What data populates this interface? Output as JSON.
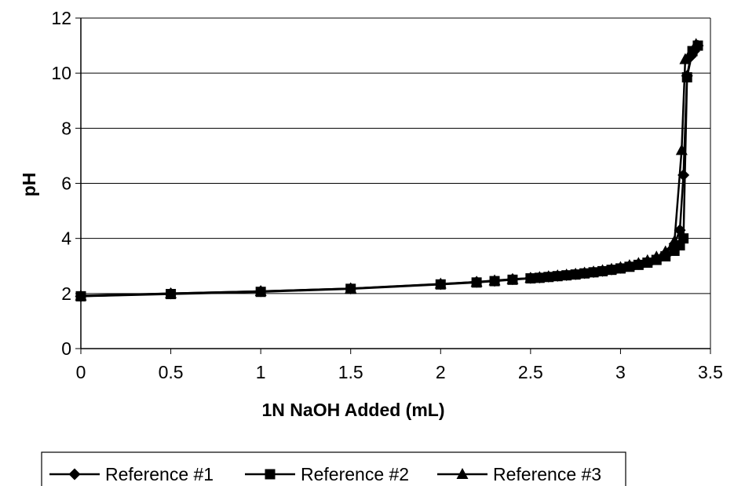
{
  "chart_data": {
    "type": "line",
    "title": "",
    "xlabel": "1N NaOH Added (mL)",
    "ylabel": "pH",
    "xlim": [
      0,
      3.5
    ],
    "ylim": [
      0,
      12
    ],
    "x_ticks": [
      "0",
      "0.5",
      "1",
      "1.5",
      "2",
      "2.5",
      "3",
      "3.5"
    ],
    "y_ticks": [
      "0",
      "2",
      "4",
      "6",
      "8",
      "10",
      "12"
    ],
    "grid": "horizontal",
    "legend_position": "bottom",
    "series": [
      {
        "name": "Reference #1",
        "marker": "diamond",
        "color": "#000000",
        "points": [
          [
            0,
            1.9
          ],
          [
            0.5,
            2.0
          ],
          [
            1,
            2.08
          ],
          [
            1.5,
            2.18
          ],
          [
            2,
            2.34
          ],
          [
            2.2,
            2.42
          ],
          [
            2.3,
            2.46
          ],
          [
            2.4,
            2.52
          ],
          [
            2.5,
            2.56
          ],
          [
            2.55,
            2.58
          ],
          [
            2.6,
            2.61
          ],
          [
            2.65,
            2.64
          ],
          [
            2.7,
            2.67
          ],
          [
            2.75,
            2.7
          ],
          [
            2.8,
            2.74
          ],
          [
            2.85,
            2.78
          ],
          [
            2.9,
            2.82
          ],
          [
            2.95,
            2.87
          ],
          [
            3.0,
            2.93
          ],
          [
            3.05,
            3.0
          ],
          [
            3.1,
            3.07
          ],
          [
            3.15,
            3.16
          ],
          [
            3.2,
            3.28
          ],
          [
            3.25,
            3.45
          ],
          [
            3.3,
            3.8
          ],
          [
            3.33,
            4.3
          ],
          [
            3.35,
            6.3
          ],
          [
            3.37,
            9.9
          ],
          [
            3.39,
            10.6
          ],
          [
            3.41,
            10.8
          ],
          [
            3.43,
            11.0
          ]
        ]
      },
      {
        "name": "Reference #2",
        "marker": "square",
        "color": "#000000",
        "points": [
          [
            0,
            1.9
          ],
          [
            0.5,
            1.98
          ],
          [
            1,
            2.06
          ],
          [
            1.5,
            2.17
          ],
          [
            2,
            2.33
          ],
          [
            2.2,
            2.4
          ],
          [
            2.3,
            2.45
          ],
          [
            2.4,
            2.5
          ],
          [
            2.5,
            2.55
          ],
          [
            2.55,
            2.57
          ],
          [
            2.6,
            2.6
          ],
          [
            2.65,
            2.63
          ],
          [
            2.7,
            2.66
          ],
          [
            2.75,
            2.69
          ],
          [
            2.8,
            2.73
          ],
          [
            2.85,
            2.77
          ],
          [
            2.9,
            2.81
          ],
          [
            2.95,
            2.86
          ],
          [
            3.0,
            2.91
          ],
          [
            3.05,
            2.97
          ],
          [
            3.1,
            3.04
          ],
          [
            3.15,
            3.12
          ],
          [
            3.2,
            3.22
          ],
          [
            3.25,
            3.35
          ],
          [
            3.3,
            3.55
          ],
          [
            3.33,
            3.75
          ],
          [
            3.35,
            4.0
          ],
          [
            3.37,
            9.85
          ],
          [
            3.4,
            10.8
          ],
          [
            3.43,
            11.0
          ]
        ]
      },
      {
        "name": "Reference #3",
        "marker": "triangle",
        "color": "#000000",
        "points": [
          [
            0,
            1.92
          ],
          [
            0.5,
            2.0
          ],
          [
            1,
            2.08
          ],
          [
            1.5,
            2.18
          ],
          [
            2,
            2.35
          ],
          [
            2.2,
            2.42
          ],
          [
            2.3,
            2.47
          ],
          [
            2.4,
            2.52
          ],
          [
            2.5,
            2.56
          ],
          [
            2.55,
            2.59
          ],
          [
            2.6,
            2.62
          ],
          [
            2.65,
            2.65
          ],
          [
            2.7,
            2.68
          ],
          [
            2.75,
            2.71
          ],
          [
            2.8,
            2.75
          ],
          [
            2.85,
            2.79
          ],
          [
            2.9,
            2.84
          ],
          [
            2.95,
            2.89
          ],
          [
            3.0,
            2.95
          ],
          [
            3.05,
            3.02
          ],
          [
            3.1,
            3.1
          ],
          [
            3.15,
            3.2
          ],
          [
            3.2,
            3.33
          ],
          [
            3.25,
            3.52
          ],
          [
            3.3,
            3.9
          ],
          [
            3.34,
            7.2
          ],
          [
            3.36,
            10.5
          ],
          [
            3.39,
            10.75
          ],
          [
            3.42,
            11.05
          ]
        ]
      }
    ]
  }
}
